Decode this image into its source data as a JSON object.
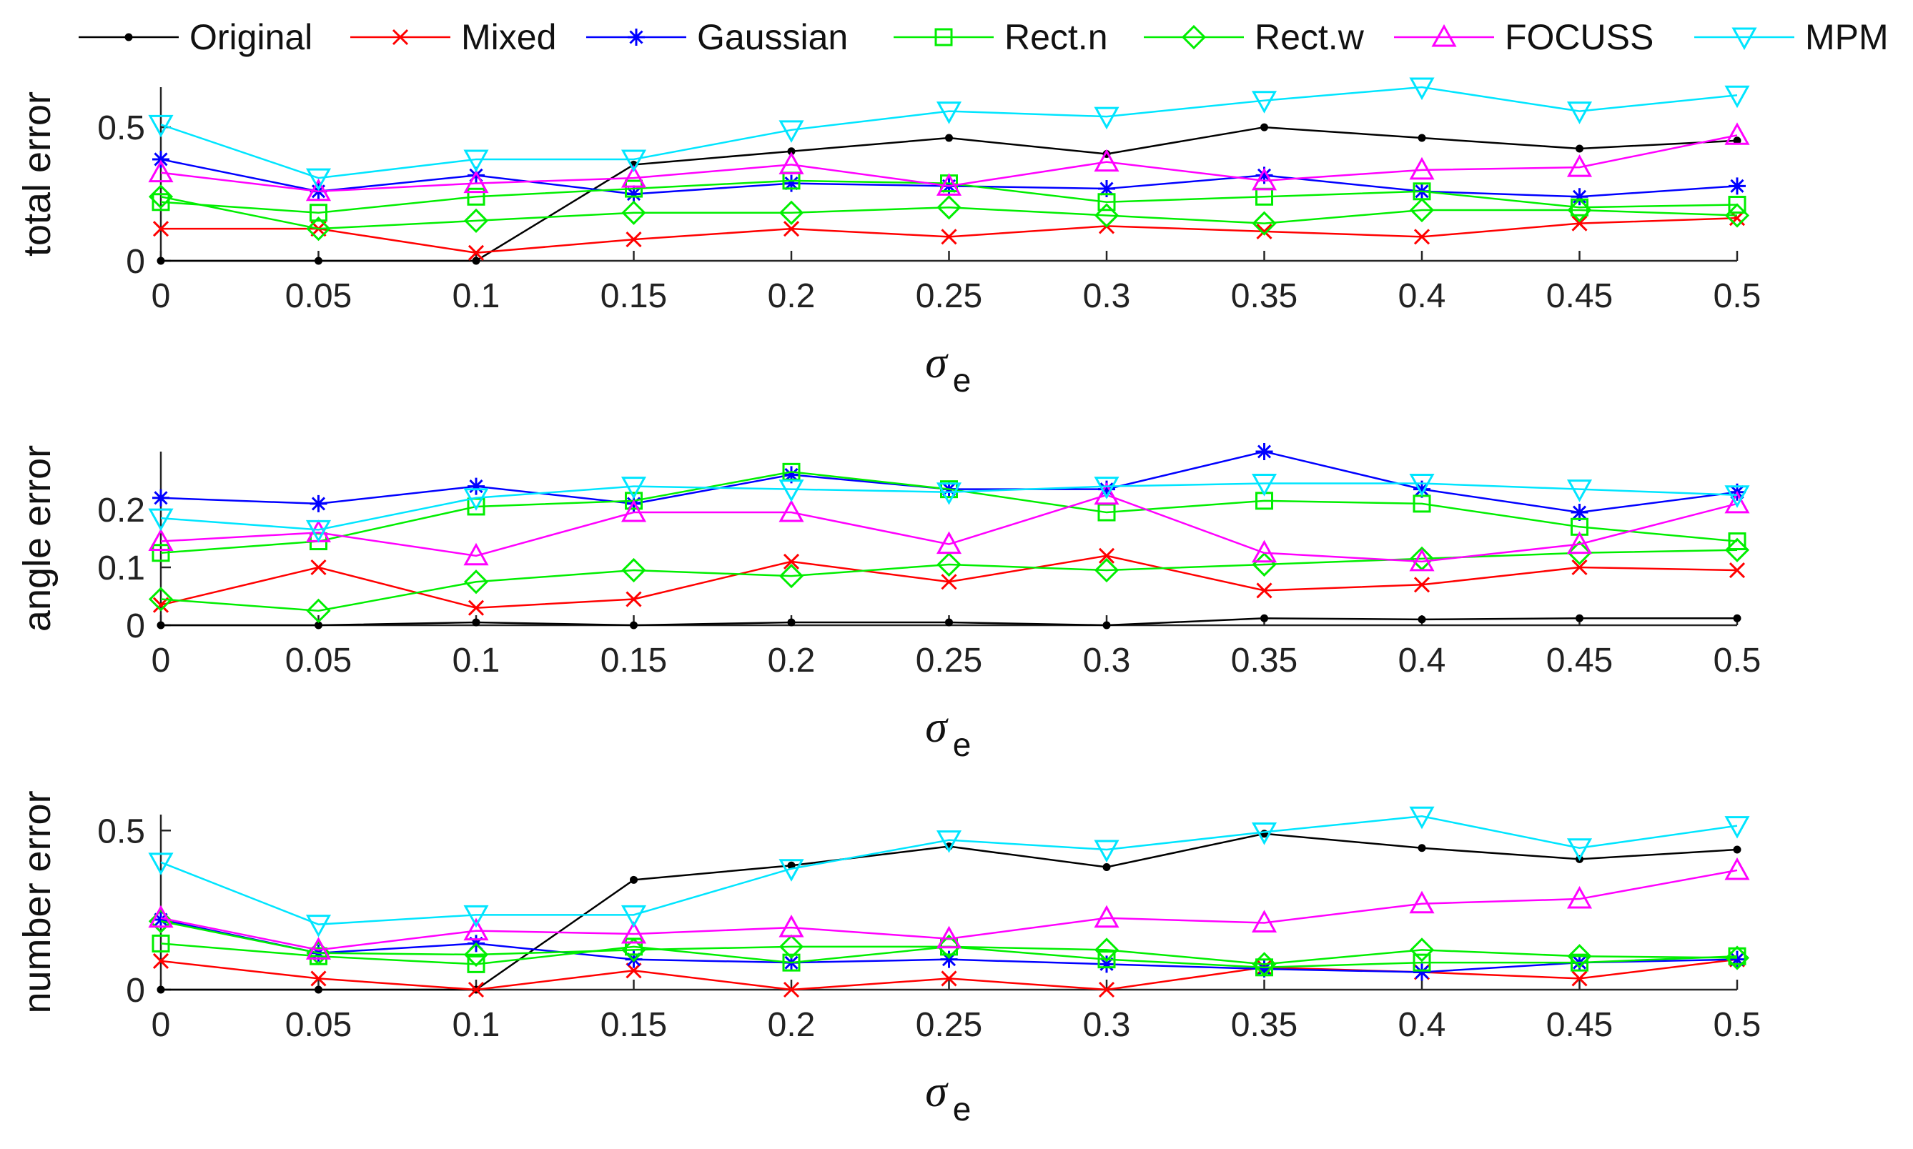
{
  "chart_data": [
    {
      "type": "line",
      "title": "",
      "ylabel": "total error",
      "xlabel": "σ",
      "xlabel_sub": "e",
      "xlim": [
        0,
        0.5
      ],
      "ylim": [
        0,
        0.65
      ],
      "x": [
        0,
        0.05,
        0.1,
        0.15,
        0.2,
        0.25,
        0.3,
        0.35,
        0.4,
        0.45,
        0.5
      ],
      "xtick_labels": [
        "0",
        "0.05",
        "0.1",
        "0.15",
        "0.2",
        "0.25",
        "0.3",
        "0.35",
        "0.4",
        "0.45",
        "0.5"
      ],
      "yticks": [
        0,
        0.5
      ],
      "ytick_labels": [
        "0",
        "0.5"
      ],
      "series": [
        {
          "name": "Original",
          "values": [
            0.0,
            0.0,
            0.0,
            0.36,
            0.41,
            0.46,
            0.4,
            0.5,
            0.46,
            0.42,
            0.45
          ]
        },
        {
          "name": "Mixed",
          "values": [
            0.12,
            0.12,
            0.03,
            0.08,
            0.12,
            0.09,
            0.13,
            0.11,
            0.09,
            0.14,
            0.16
          ]
        },
        {
          "name": "Gaussian",
          "values": [
            0.38,
            0.26,
            0.32,
            0.25,
            0.29,
            0.28,
            0.27,
            0.32,
            0.26,
            0.24,
            0.28
          ]
        },
        {
          "name": "Rect.n",
          "values": [
            0.22,
            0.18,
            0.24,
            0.27,
            0.3,
            0.29,
            0.22,
            0.24,
            0.26,
            0.2,
            0.21
          ]
        },
        {
          "name": "Rect.w",
          "values": [
            0.24,
            0.12,
            0.15,
            0.18,
            0.18,
            0.2,
            0.17,
            0.14,
            0.19,
            0.19,
            0.17
          ]
        },
        {
          "name": "FOCUSS",
          "values": [
            0.33,
            0.26,
            0.29,
            0.31,
            0.36,
            0.28,
            0.37,
            0.3,
            0.34,
            0.35,
            0.47
          ]
        },
        {
          "name": "MPM",
          "values": [
            0.51,
            0.31,
            0.38,
            0.38,
            0.49,
            0.56,
            0.54,
            0.6,
            0.65,
            0.56,
            0.62
          ]
        }
      ]
    },
    {
      "type": "line",
      "title": "",
      "ylabel": "angle error",
      "xlabel": "σ",
      "xlabel_sub": "e",
      "xlim": [
        0,
        0.5
      ],
      "ylim": [
        0,
        0.3
      ],
      "x": [
        0,
        0.05,
        0.1,
        0.15,
        0.2,
        0.25,
        0.3,
        0.35,
        0.4,
        0.45,
        0.5
      ],
      "xtick_labels": [
        "0",
        "0.05",
        "0.1",
        "0.15",
        "0.2",
        "0.25",
        "0.3",
        "0.35",
        "0.4",
        "0.45",
        "0.5"
      ],
      "yticks": [
        0,
        0.1,
        0.2
      ],
      "ytick_labels": [
        "0",
        "0.1",
        "0.2"
      ],
      "series": [
        {
          "name": "Original",
          "values": [
            0.0,
            0.0,
            0.005,
            0.0,
            0.005,
            0.005,
            0.0,
            0.012,
            0.01,
            0.012,
            0.012
          ]
        },
        {
          "name": "Mixed",
          "values": [
            0.035,
            0.1,
            0.03,
            0.045,
            0.11,
            0.075,
            0.12,
            0.06,
            0.07,
            0.1,
            0.095
          ]
        },
        {
          "name": "Gaussian",
          "values": [
            0.22,
            0.21,
            0.24,
            0.21,
            0.26,
            0.235,
            0.235,
            0.3,
            0.235,
            0.195,
            0.23
          ]
        },
        {
          "name": "Rect.n",
          "values": [
            0.125,
            0.145,
            0.205,
            0.215,
            0.265,
            0.235,
            0.195,
            0.215,
            0.21,
            0.17,
            0.145
          ]
        },
        {
          "name": "Rect.w",
          "values": [
            0.045,
            0.025,
            0.075,
            0.095,
            0.085,
            0.105,
            0.095,
            0.105,
            0.115,
            0.125,
            0.13
          ]
        },
        {
          "name": "FOCUSS",
          "values": [
            0.145,
            0.16,
            0.12,
            0.195,
            0.195,
            0.14,
            0.225,
            0.125,
            0.11,
            0.14,
            0.21
          ]
        },
        {
          "name": "MPM",
          "values": [
            0.185,
            0.165,
            0.22,
            0.24,
            0.235,
            0.23,
            0.24,
            0.245,
            0.245,
            0.235,
            0.225
          ]
        }
      ]
    },
    {
      "type": "line",
      "title": "",
      "ylabel": "number error",
      "xlabel": "σ",
      "xlabel_sub": "e",
      "xlim": [
        0,
        0.5
      ],
      "ylim": [
        0,
        0.55
      ],
      "x": [
        0,
        0.05,
        0.1,
        0.15,
        0.2,
        0.25,
        0.3,
        0.35,
        0.4,
        0.45,
        0.5
      ],
      "xtick_labels": [
        "0",
        "0.05",
        "0.1",
        "0.15",
        "0.2",
        "0.25",
        "0.3",
        "0.35",
        "0.4",
        "0.45",
        "0.5"
      ],
      "yticks": [
        0,
        0.5
      ],
      "ytick_labels": [
        "0",
        "0.5"
      ],
      "series": [
        {
          "name": "Original",
          "values": [
            0.0,
            0.0,
            0.0,
            0.345,
            0.39,
            0.45,
            0.385,
            0.49,
            0.445,
            0.41,
            0.44
          ]
        },
        {
          "name": "Mixed",
          "values": [
            0.09,
            0.035,
            0.0,
            0.06,
            0.0,
            0.035,
            0.0,
            0.07,
            0.055,
            0.035,
            0.095
          ]
        },
        {
          "name": "Gaussian",
          "values": [
            0.22,
            0.115,
            0.145,
            0.095,
            0.085,
            0.095,
            0.08,
            0.065,
            0.055,
            0.085,
            0.095
          ]
        },
        {
          "name": "Rect.n",
          "values": [
            0.145,
            0.105,
            0.08,
            0.135,
            0.085,
            0.135,
            0.095,
            0.07,
            0.085,
            0.085,
            0.105
          ]
        },
        {
          "name": "Rect.w",
          "values": [
            0.215,
            0.115,
            0.11,
            0.125,
            0.135,
            0.135,
            0.125,
            0.08,
            0.125,
            0.105,
            0.1
          ]
        },
        {
          "name": "FOCUSS",
          "values": [
            0.225,
            0.125,
            0.185,
            0.175,
            0.195,
            0.16,
            0.225,
            0.21,
            0.27,
            0.285,
            0.375
          ]
        },
        {
          "name": "MPM",
          "values": [
            0.4,
            0.205,
            0.235,
            0.235,
            0.38,
            0.47,
            0.44,
            0.495,
            0.545,
            0.445,
            0.515
          ]
        }
      ]
    }
  ],
  "legend": {
    "placement": "top",
    "entries": [
      {
        "name": "Original",
        "color": "#000000",
        "marker": "dot"
      },
      {
        "name": "Mixed",
        "color": "#ff0000",
        "marker": "x"
      },
      {
        "name": "Gaussian",
        "color": "#0000ff",
        "marker": "asterisk"
      },
      {
        "name": "Rect.n",
        "color": "#00ee00",
        "marker": "square"
      },
      {
        "name": "Rect.w",
        "color": "#00ee00",
        "marker": "diamond"
      },
      {
        "name": "FOCUSS",
        "color": "#ff00ff",
        "marker": "triangle-up"
      },
      {
        "name": "MPM",
        "color": "#00e5ff",
        "marker": "triangle-down"
      }
    ]
  }
}
